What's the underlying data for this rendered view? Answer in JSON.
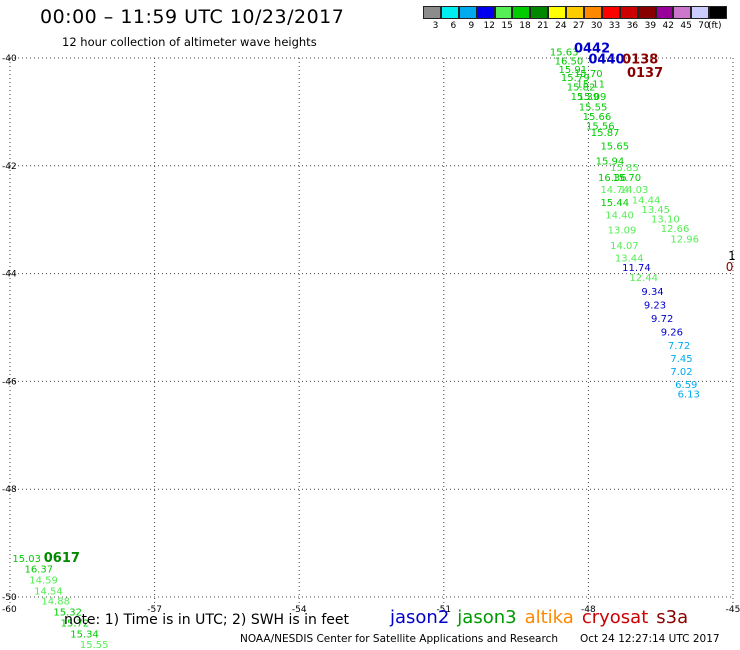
{
  "header": {
    "title": "00:00 – 11:59 UTC 10/23/2017",
    "subtitle": "12 hour collection of altimeter wave heights"
  },
  "colorbar": {
    "unit_label": "(ft)",
    "bins": [
      {
        "label": "3",
        "color": "#8c8c8c"
      },
      {
        "label": "6",
        "color": "#00eeee"
      },
      {
        "label": "9",
        "color": "#00aaee"
      },
      {
        "label": "12",
        "color": "#0000ee"
      },
      {
        "label": "15",
        "color": "#55ee55"
      },
      {
        "label": "18",
        "color": "#00cc00"
      },
      {
        "label": "21",
        "color": "#008800"
      },
      {
        "label": "24",
        "color": "#ffff00"
      },
      {
        "label": "27",
        "color": "#ffcc00"
      },
      {
        "label": "30",
        "color": "#ff8800"
      },
      {
        "label": "33",
        "color": "#ff0000"
      },
      {
        "label": "36",
        "color": "#cc0000"
      },
      {
        "label": "39",
        "color": "#880000"
      },
      {
        "label": "42",
        "color": "#990099"
      },
      {
        "label": "45",
        "color": "#cc77cc"
      },
      {
        "label": "70",
        "color": "#ccccff"
      },
      {
        "label": "",
        "color": "#000000"
      }
    ]
  },
  "map": {
    "lon_ticks": [
      "-60",
      "-57",
      "-54",
      "-51",
      "-48",
      "-45"
    ],
    "lat_ticks": [
      "-40",
      "-42",
      "-44",
      "-46",
      "-48",
      "-50"
    ],
    "lon_range": [
      -60,
      -45
    ],
    "lat_range": [
      -50,
      -40
    ],
    "grid": true,
    "passes": [
      {
        "time": "0442",
        "satellite": "jason2",
        "color": "#0000cc",
        "lon": -48.3,
        "lat": -39.9
      },
      {
        "time": "0440",
        "satellite": "jason2",
        "color": "#0000cc",
        "lon": -48.0,
        "lat": -40.1
      },
      {
        "time": "0138",
        "satellite": "cryosat",
        "color": "#880000",
        "lon": -47.3,
        "lat": -40.1
      },
      {
        "time": "0137",
        "satellite": "cryosat",
        "color": "#880000",
        "lon": -47.2,
        "lat": -40.35
      },
      {
        "time": "0617",
        "satellite": "jason3",
        "color": "#008800",
        "lon": -59.3,
        "lat": -49.35
      }
    ],
    "observations": [
      {
        "v": "15.63",
        "c": "#00cc00",
        "lon": -48.8,
        "lat": -39.95
      },
      {
        "v": "16.50",
        "c": "#00cc00",
        "lon": -48.7,
        "lat": -40.12
      },
      {
        "v": "15.91",
        "c": "#00cc00",
        "lon": -48.62,
        "lat": -40.28
      },
      {
        "v": "15.79",
        "c": "#00cc00",
        "lon": -48.57,
        "lat": -40.43
      },
      {
        "v": "15.70",
        "c": "#00cc00",
        "lon": -48.3,
        "lat": -40.35
      },
      {
        "v": "15.82",
        "c": "#00cc00",
        "lon": -48.45,
        "lat": -40.6
      },
      {
        "v": "15.11",
        "c": "#00cc00",
        "lon": -48.25,
        "lat": -40.55
      },
      {
        "v": "15.39",
        "c": "#00cc00",
        "lon": -48.37,
        "lat": -40.78
      },
      {
        "v": "15.09",
        "c": "#00cc00",
        "lon": -48.22,
        "lat": -40.78
      },
      {
        "v": "15.55",
        "c": "#00cc00",
        "lon": -48.2,
        "lat": -40.97
      },
      {
        "v": "15.66",
        "c": "#00cc00",
        "lon": -48.12,
        "lat": -41.15
      },
      {
        "v": "15.56",
        "c": "#00cc00",
        "lon": -48.05,
        "lat": -41.33
      },
      {
        "v": "15.87",
        "c": "#00cc00",
        "lon": -47.95,
        "lat": -41.45
      },
      {
        "v": "15.65",
        "c": "#00cc00",
        "lon": -47.75,
        "lat": -41.7
      },
      {
        "v": "15.94",
        "c": "#00cc00",
        "lon": -47.85,
        "lat": -41.98
      },
      {
        "v": "15.85",
        "c": "#55ee55",
        "lon": -47.55,
        "lat": -42.1
      },
      {
        "v": "15.70",
        "c": "#00cc00",
        "lon": -47.5,
        "lat": -42.28
      },
      {
        "v": "16.36",
        "c": "#00cc00",
        "lon": -47.8,
        "lat": -42.28
      },
      {
        "v": "14.74",
        "c": "#55ee55",
        "lon": -47.75,
        "lat": -42.5
      },
      {
        "v": "14.03",
        "c": "#55ee55",
        "lon": -47.35,
        "lat": -42.5
      },
      {
        "v": "14.44",
        "c": "#55ee55",
        "lon": -47.1,
        "lat": -42.7
      },
      {
        "v": "15.44",
        "c": "#00cc00",
        "lon": -47.75,
        "lat": -42.75
      },
      {
        "v": "13.45",
        "c": "#55ee55",
        "lon": -46.9,
        "lat": -42.88
      },
      {
        "v": "14.40",
        "c": "#55ee55",
        "lon": -47.65,
        "lat": -42.98
      },
      {
        "v": "13.10",
        "c": "#55ee55",
        "lon": -46.7,
        "lat": -43.05
      },
      {
        "v": "12.66",
        "c": "#55ee55",
        "lon": -46.5,
        "lat": -43.23
      },
      {
        "v": "13.09",
        "c": "#55ee55",
        "lon": -47.6,
        "lat": -43.26
      },
      {
        "v": "12.96",
        "c": "#55ee55",
        "lon": -46.3,
        "lat": -43.42
      },
      {
        "v": "14.07",
        "c": "#55ee55",
        "lon": -47.55,
        "lat": -43.54
      },
      {
        "v": "13.44",
        "c": "#55ee55",
        "lon": -47.45,
        "lat": -43.78
      },
      {
        "v": "11.74",
        "c": "#0000cc",
        "lon": -47.3,
        "lat": -43.95
      },
      {
        "v": "12.44",
        "c": "#55ee55",
        "lon": -47.15,
        "lat": -44.14
      },
      {
        "v": "9.34",
        "c": "#0000cc",
        "lon": -46.9,
        "lat": -44.4
      },
      {
        "v": "9.23",
        "c": "#0000cc",
        "lon": -46.85,
        "lat": -44.65
      },
      {
        "v": "9.72",
        "c": "#0000cc",
        "lon": -46.7,
        "lat": -44.9
      },
      {
        "v": "9.26",
        "c": "#0000cc",
        "lon": -46.5,
        "lat": -45.15
      },
      {
        "v": "7.72",
        "c": "#00aaee",
        "lon": -46.35,
        "lat": -45.4
      },
      {
        "v": "7.45",
        "c": "#00aaee",
        "lon": -46.3,
        "lat": -45.64
      },
      {
        "v": "7.02",
        "c": "#00aaee",
        "lon": -46.3,
        "lat": -45.88
      },
      {
        "v": "6.59",
        "c": "#00aaee",
        "lon": -46.2,
        "lat": -46.12
      },
      {
        "v": "6.13",
        "c": "#00aaee",
        "lon": -46.15,
        "lat": -46.3
      },
      {
        "v": "15.03",
        "c": "#00cc00",
        "lon": -59.95,
        "lat": -49.35
      },
      {
        "v": "16.37",
        "c": "#00cc00",
        "lon": -59.7,
        "lat": -49.55
      },
      {
        "v": "14.59",
        "c": "#55ee55",
        "lon": -59.6,
        "lat": -49.75
      },
      {
        "v": "14.54",
        "c": "#55ee55",
        "lon": -59.5,
        "lat": -49.95
      },
      {
        "v": "14.88",
        "c": "#55ee55",
        "lon": -59.35,
        "lat": -50.14
      },
      {
        "v": "15.32",
        "c": "#00cc00",
        "lon": -59.1,
        "lat": -50.34
      },
      {
        "v": "15.72",
        "c": "#00cc00",
        "lon": -58.95,
        "lat": -50.55
      },
      {
        "v": "15.34",
        "c": "#00cc00",
        "lon": -58.75,
        "lat": -50.75
      },
      {
        "v": "15.55",
        "c": "#55ee55",
        "lon": -58.55,
        "lat": -50.95
      }
    ],
    "edge_fragments": [
      {
        "text": "1",
        "color": "#000000",
        "lon": -45.1,
        "lat": -43.75
      },
      {
        "text": "0",
        "color": "#880000",
        "lon": -45.15,
        "lat": -43.95
      }
    ]
  },
  "footer": {
    "note": "note: 1) Time is in UTC; 2) SWH is in feet",
    "legend": [
      {
        "name": "jason2",
        "color": "#0000cc"
      },
      {
        "name": "jason3",
        "color": "#009900"
      },
      {
        "name": "altika",
        "color": "#ff8800"
      },
      {
        "name": "cryosat",
        "color": "#cc0000"
      },
      {
        "name": "s3a",
        "color": "#880000"
      }
    ],
    "credit": "NOAA/NESDIS Center for Satellite Applications and Research",
    "timestamp": "Oct 24 12:27:14 UTC 2017"
  }
}
